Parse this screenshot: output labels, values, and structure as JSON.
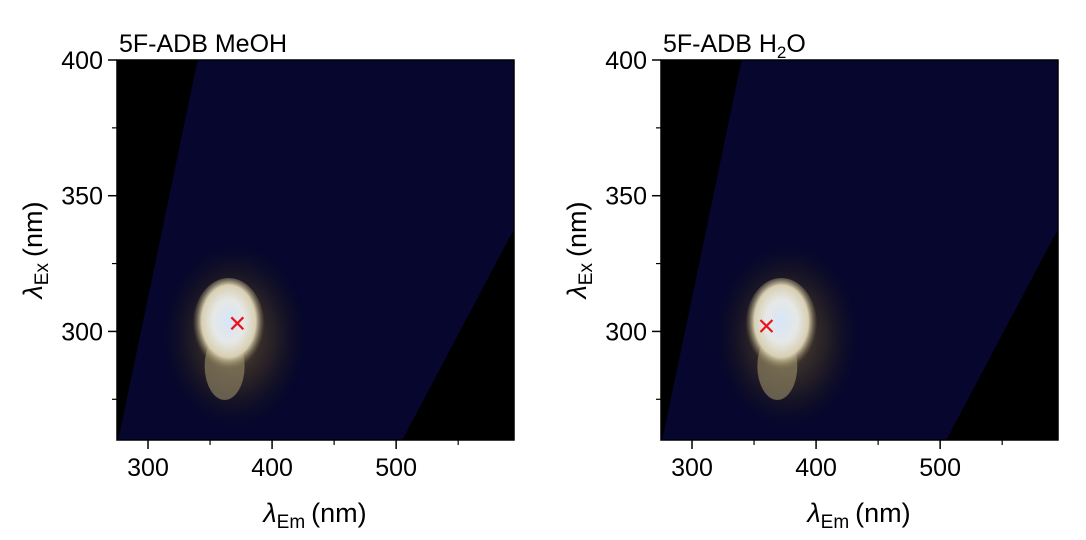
{
  "chart_data": [
    {
      "type": "heatmap",
      "title_main": "5F-ADB MeOH",
      "title_sub": "",
      "title_tail": "",
      "xlabel_symbol": "λ",
      "xlabel_sub": "Em",
      "xlabel_unit": "(nm)",
      "ylabel_symbol": "λ",
      "ylabel_sub": "Ex",
      "ylabel_unit": "(nm)",
      "xlim": [
        275,
        595
      ],
      "ylim": [
        260,
        400
      ],
      "x_ticks": [
        300,
        400,
        500
      ],
      "x_tick_labels": [
        "300",
        "400",
        "500"
      ],
      "x_minor_ticks": [
        350,
        450,
        550
      ],
      "y_ticks": [
        300,
        350,
        400
      ],
      "y_tick_labels": [
        "300",
        "350",
        "400"
      ],
      "y_minor_ticks": [
        275,
        325,
        375
      ],
      "peak": {
        "em": 365,
        "ex": 302
      },
      "marker": {
        "em": 372,
        "ex": 303,
        "symbol": "x",
        "color": "#e8141c"
      },
      "colors": {
        "background": "#000000",
        "scatter_band": "#06062e",
        "peak": "#cfe0f5"
      }
    },
    {
      "type": "heatmap",
      "title_main": "5F-ADB H",
      "title_sub": "2",
      "title_tail": "O",
      "xlabel_symbol": "λ",
      "xlabel_sub": "Em",
      "xlabel_unit": "(nm)",
      "ylabel_symbol": "λ",
      "ylabel_sub": "Ex",
      "ylabel_unit": "(nm)",
      "xlim": [
        275,
        595
      ],
      "ylim": [
        260,
        400
      ],
      "x_ticks": [
        300,
        400,
        500
      ],
      "x_tick_labels": [
        "300",
        "400",
        "500"
      ],
      "x_minor_ticks": [
        350,
        450,
        550
      ],
      "y_ticks": [
        300,
        350,
        400
      ],
      "y_tick_labels": [
        "300",
        "350",
        "400"
      ],
      "y_minor_ticks": [
        275,
        325,
        375
      ],
      "peak": {
        "em": 372,
        "ex": 302
      },
      "marker": {
        "em": 360,
        "ex": 302,
        "symbol": "x",
        "color": "#e8141c"
      },
      "colors": {
        "background": "#000000",
        "scatter_band": "#06062e",
        "peak": "#cfe0f5"
      }
    }
  ]
}
